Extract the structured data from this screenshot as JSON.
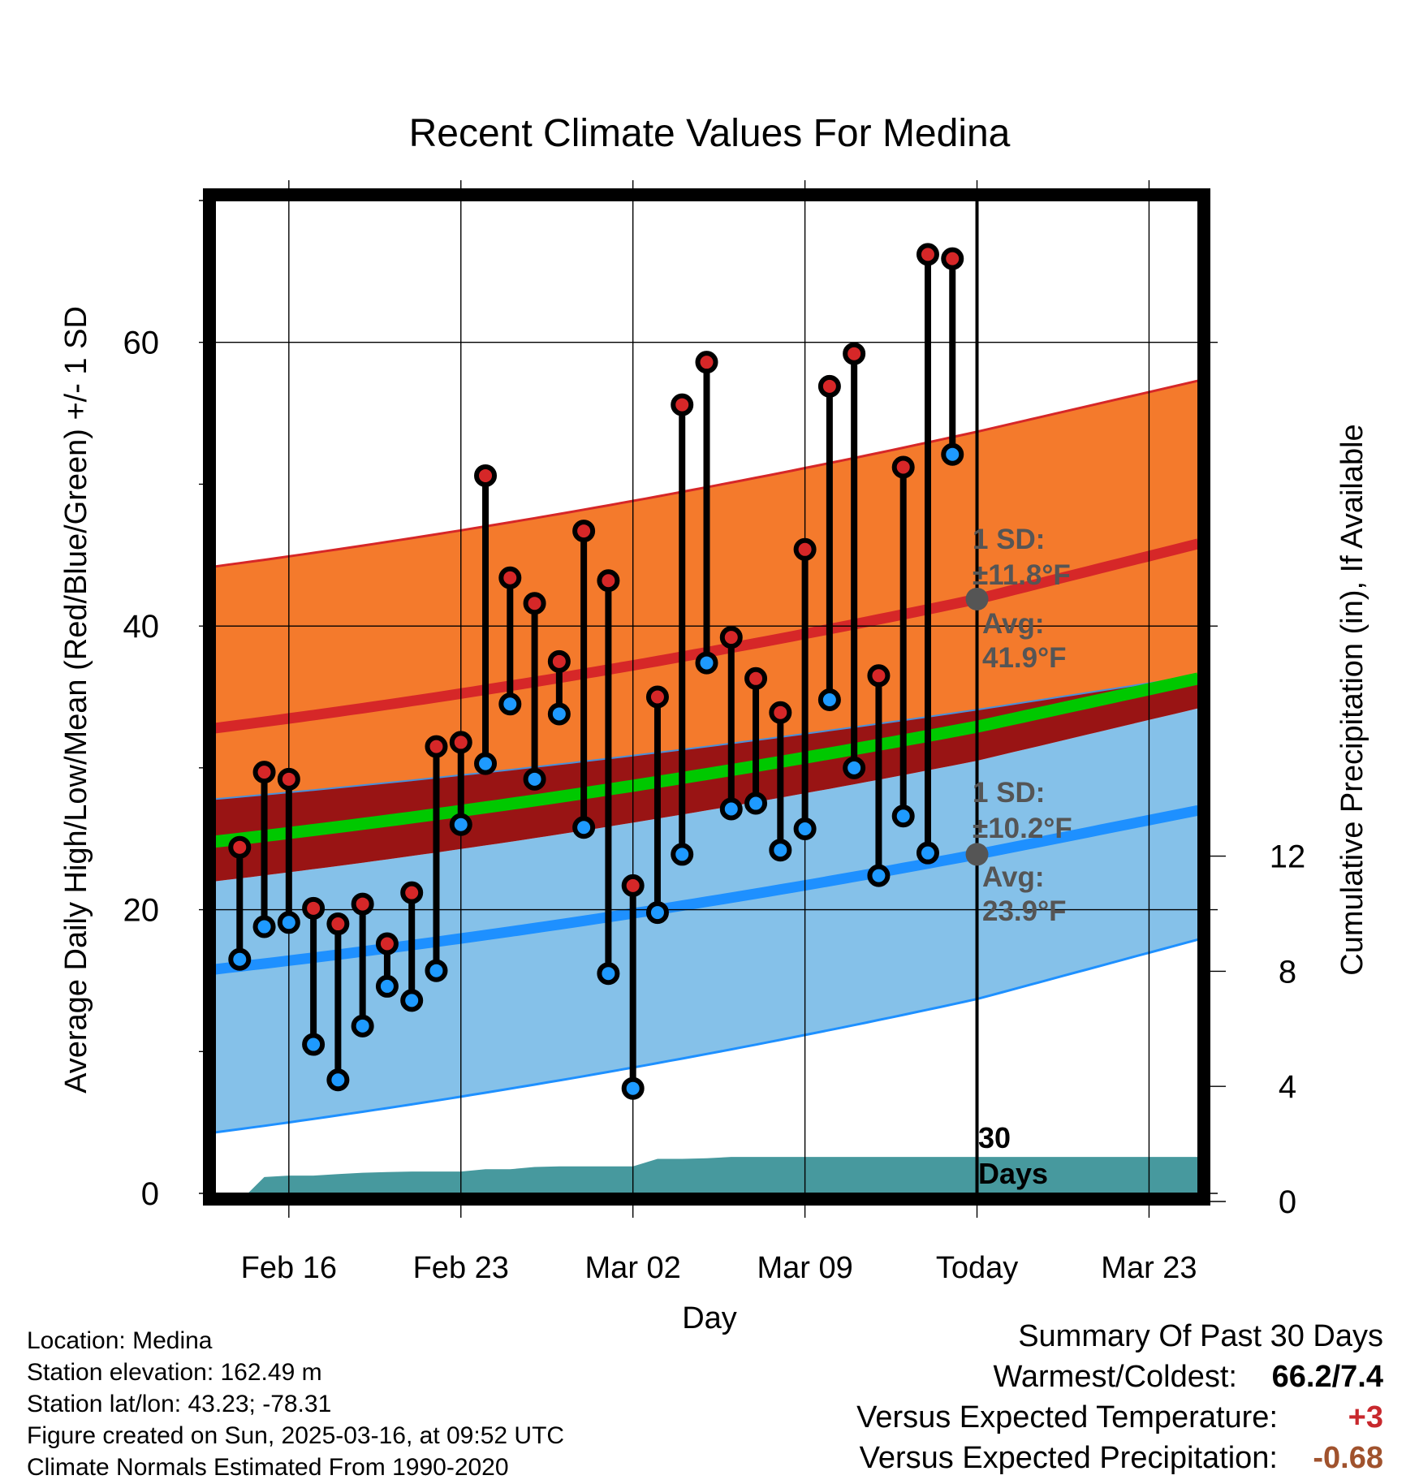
{
  "chart_data": {
    "type": "line",
    "title": "Recent Climate Values For Medina",
    "xlabel": "Day",
    "ylabel": "Average Daily High/Low/Mean (Red/Blue/Green) +/- 1 SD",
    "y2label": "Cumulative Precipitation (in), If Available",
    "x_tick_labels": [
      "Feb 16",
      "Feb 23",
      "Mar 02",
      "Mar 09",
      "Today",
      "Mar 23"
    ],
    "x_range": [
      "2025-02-13",
      "2025-03-25"
    ],
    "ylim": [
      0,
      70
    ],
    "y_ticks": [
      0,
      20,
      40,
      60
    ],
    "y2lim": [
      0,
      16.7
    ],
    "y2_ticks": [
      0,
      4,
      8,
      12
    ],
    "grid": true,
    "today": "2025-03-16",
    "days_label": "30 Days",
    "observed_highs": [
      {
        "date": "2025-02-14",
        "value": 24.4
      },
      {
        "date": "2025-02-15",
        "value": 29.7
      },
      {
        "date": "2025-02-16",
        "value": 29.2
      },
      {
        "date": "2025-02-17",
        "value": 20.1
      },
      {
        "date": "2025-02-18",
        "value": 19.0
      },
      {
        "date": "2025-02-19",
        "value": 20.4
      },
      {
        "date": "2025-02-20",
        "value": 17.6
      },
      {
        "date": "2025-02-21",
        "value": 21.2
      },
      {
        "date": "2025-02-22",
        "value": 31.5
      },
      {
        "date": "2025-02-23",
        "value": 31.8
      },
      {
        "date": "2025-02-24",
        "value": 50.6
      },
      {
        "date": "2025-02-25",
        "value": 43.4
      },
      {
        "date": "2025-02-26",
        "value": 41.6
      },
      {
        "date": "2025-02-27",
        "value": 37.5
      },
      {
        "date": "2025-02-28",
        "value": 46.7
      },
      {
        "date": "2025-03-01",
        "value": 43.2
      },
      {
        "date": "2025-03-02",
        "value": 21.7
      },
      {
        "date": "2025-03-03",
        "value": 35.0
      },
      {
        "date": "2025-03-04",
        "value": 55.6
      },
      {
        "date": "2025-03-05",
        "value": 58.6
      },
      {
        "date": "2025-03-06",
        "value": 39.2
      },
      {
        "date": "2025-03-07",
        "value": 36.3
      },
      {
        "date": "2025-03-08",
        "value": 33.9
      },
      {
        "date": "2025-03-09",
        "value": 45.4
      },
      {
        "date": "2025-03-10",
        "value": 56.9
      },
      {
        "date": "2025-03-11",
        "value": 59.2
      },
      {
        "date": "2025-03-12",
        "value": 36.5
      },
      {
        "date": "2025-03-13",
        "value": 51.2
      },
      {
        "date": "2025-03-14",
        "value": 66.2
      },
      {
        "date": "2025-03-15",
        "value": 65.9
      }
    ],
    "observed_lows": [
      {
        "date": "2025-02-14",
        "value": 16.5
      },
      {
        "date": "2025-02-15",
        "value": 18.8
      },
      {
        "date": "2025-02-16",
        "value": 19.1
      },
      {
        "date": "2025-02-17",
        "value": 10.5
      },
      {
        "date": "2025-02-18",
        "value": 8.0
      },
      {
        "date": "2025-02-19",
        "value": 11.8
      },
      {
        "date": "2025-02-20",
        "value": 14.6
      },
      {
        "date": "2025-02-21",
        "value": 13.6
      },
      {
        "date": "2025-02-22",
        "value": 15.7
      },
      {
        "date": "2025-02-23",
        "value": 26.0
      },
      {
        "date": "2025-02-24",
        "value": 30.3
      },
      {
        "date": "2025-02-25",
        "value": 34.5
      },
      {
        "date": "2025-02-26",
        "value": 29.2
      },
      {
        "date": "2025-02-27",
        "value": 33.8
      },
      {
        "date": "2025-02-28",
        "value": 25.8
      },
      {
        "date": "2025-03-01",
        "value": 15.5
      },
      {
        "date": "2025-03-02",
        "value": 7.4
      },
      {
        "date": "2025-03-03",
        "value": 19.8
      },
      {
        "date": "2025-03-04",
        "value": 23.9
      },
      {
        "date": "2025-03-05",
        "value": 37.4
      },
      {
        "date": "2025-03-06",
        "value": 27.1
      },
      {
        "date": "2025-03-07",
        "value": 27.5
      },
      {
        "date": "2025-03-08",
        "value": 24.2
      },
      {
        "date": "2025-03-09",
        "value": 25.7
      },
      {
        "date": "2025-03-10",
        "value": 34.8
      },
      {
        "date": "2025-03-11",
        "value": 30.0
      },
      {
        "date": "2025-03-12",
        "value": 22.4
      },
      {
        "date": "2025-03-13",
        "value": 26.6
      },
      {
        "date": "2025-03-14",
        "value": 24.0
      },
      {
        "date": "2025-03-15",
        "value": 52.1
      }
    ],
    "normal_high": {
      "dates": [
        "2025-02-13",
        "2025-03-16",
        "2025-03-25"
      ],
      "values": [
        32.8,
        41.9,
        45.8
      ]
    },
    "normal_high_sd": {
      "dates": [
        "2025-02-13",
        "2025-03-16",
        "2025-03-25"
      ],
      "upper": [
        44.2,
        53.7,
        57.3
      ],
      "lower": [
        27.8,
        34.1,
        36.5
      ]
    },
    "normal_low": {
      "dates": [
        "2025-02-13",
        "2025-03-16",
        "2025-03-25"
      ],
      "values": [
        15.8,
        23.9,
        27.0
      ]
    },
    "normal_low_sd": {
      "dates": [
        "2025-02-13",
        "2025-03-16",
        "2025-03-25"
      ],
      "upper": [
        22.0,
        30.5,
        34.2
      ],
      "lower": [
        4.3,
        13.7,
        17.9
      ]
    },
    "normal_mean": {
      "dates": [
        "2025-02-13",
        "2025-03-16",
        "2025-03-25"
      ],
      "values": [
        24.8,
        32.9,
        36.3
      ]
    },
    "precipitation": [
      {
        "date": "2025-02-13",
        "value": 0.0
      },
      {
        "date": "2025-02-14",
        "value": 0.0
      },
      {
        "date": "2025-02-15",
        "value": 0.85
      },
      {
        "date": "2025-02-16",
        "value": 0.9
      },
      {
        "date": "2025-02-17",
        "value": 0.9
      },
      {
        "date": "2025-02-18",
        "value": 0.95
      },
      {
        "date": "2025-02-19",
        "value": 1.0
      },
      {
        "date": "2025-02-20",
        "value": 1.02
      },
      {
        "date": "2025-02-21",
        "value": 1.04
      },
      {
        "date": "2025-02-22",
        "value": 1.04
      },
      {
        "date": "2025-02-23",
        "value": 1.04
      },
      {
        "date": "2025-02-24",
        "value": 1.12
      },
      {
        "date": "2025-02-25",
        "value": 1.12
      },
      {
        "date": "2025-02-26",
        "value": 1.2
      },
      {
        "date": "2025-02-27",
        "value": 1.22
      },
      {
        "date": "2025-02-28",
        "value": 1.22
      },
      {
        "date": "2025-03-01",
        "value": 1.22
      },
      {
        "date": "2025-03-02",
        "value": 1.22
      },
      {
        "date": "2025-03-03",
        "value": 1.48
      },
      {
        "date": "2025-03-04",
        "value": 1.48
      },
      {
        "date": "2025-03-05",
        "value": 1.5
      },
      {
        "date": "2025-03-06",
        "value": 1.55
      },
      {
        "date": "2025-03-16",
        "value": 1.55
      },
      {
        "date": "2025-03-25",
        "value": 1.55
      }
    ],
    "annotations": {
      "high_sd_label": "1 SD:",
      "high_sd_value": "±11.8°F",
      "high_avg_label": "Avg:",
      "high_avg_value": "41.9°F",
      "low_sd_label": "1 SD:",
      "low_sd_value": "±10.2°F",
      "low_avg_label": "Avg:",
      "low_avg_value": "23.9°F"
    },
    "colors": {
      "high_band": "#f47a2c",
      "high_line": "#d62728",
      "low_band": "#85c1e9",
      "low_line": "#1e90ff",
      "mean_line": "#00c800",
      "overlap": "#991414",
      "precip": "#47999e",
      "high_marker": "#d62728",
      "low_marker": "#1e9aff"
    }
  },
  "footer": {
    "location": "Location: Medina",
    "elevation": "Station elevation: 162.49 m",
    "latlon": "Station lat/lon: 43.23; -78.31",
    "created": "Figure created on Sun, 2025-03-16, at 09:52 UTC",
    "normals": "Climate Normals Estimated From 1990-2020"
  },
  "summary": {
    "title": "Summary Of Past 30 Days",
    "warmest_coldest_label": "Warmest/Coldest:",
    "warmest_coldest_value": "66.2/7.4",
    "temp_label": "Versus Expected Temperature:",
    "temp_value": "+3",
    "temp_color": "#c8282d",
    "precip_label": "Versus Expected Precipitation:",
    "precip_value": "-0.68",
    "precip_color": "#a0522d"
  }
}
